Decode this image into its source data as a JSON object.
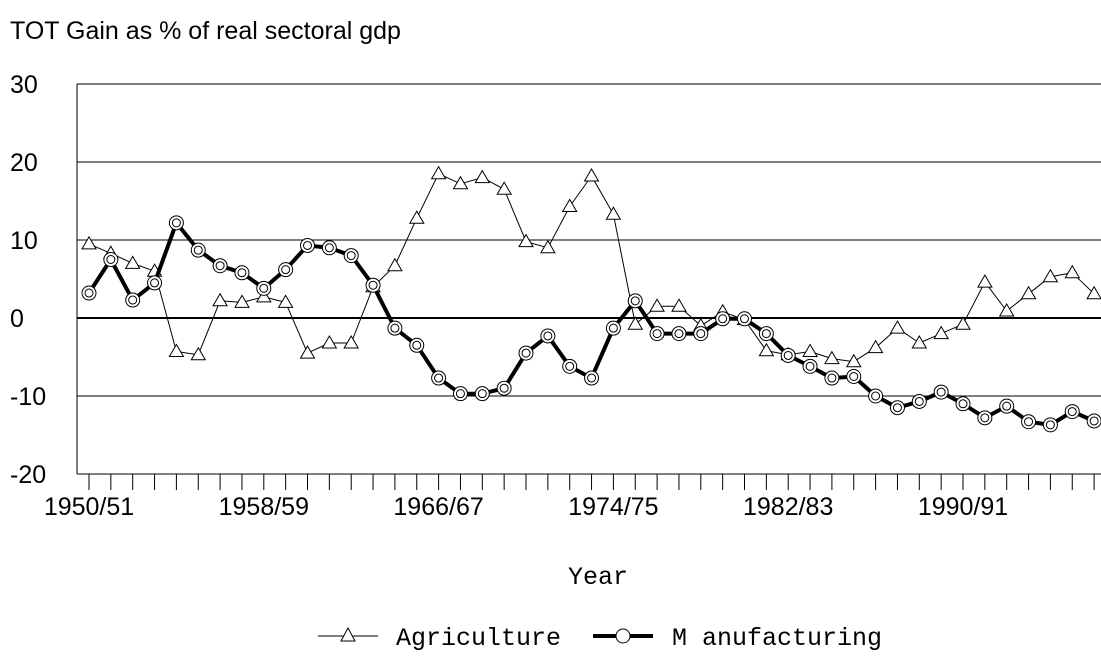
{
  "chart_data": {
    "type": "line",
    "title": "TOT Gain as % of real sectoral gdp",
    "xlabel": "Year",
    "ylabel": "",
    "ylim": [
      -20,
      30
    ],
    "yticks": [
      30,
      20,
      10,
      0,
      -10,
      -20
    ],
    "x": [
      "1950/51",
      "1951/52",
      "1952/53",
      "1953/54",
      "1954/55",
      "1955/56",
      "1956/57",
      "1957/58",
      "1958/59",
      "1959/60",
      "1960/61",
      "1961/62",
      "1962/63",
      "1963/64",
      "1964/65",
      "1965/66",
      "1966/67",
      "1967/68",
      "1968/69",
      "1969/70",
      "1970/71",
      "1971/72",
      "1972/73",
      "1973/74",
      "1974/75",
      "1975/76",
      "1976/77",
      "1977/78",
      "1978/79",
      "1979/80",
      "1980/81",
      "1981/82",
      "1982/83",
      "1983/84",
      "1984/85",
      "1985/86",
      "1986/87",
      "1987/88",
      "1988/89",
      "1989/90",
      "1990/91",
      "1991/92",
      "1992/93",
      "1993/94",
      "1994/95",
      "1995/96",
      "1996/97"
    ],
    "xtick_labels": [
      "1950/51",
      "1958/59",
      "1966/67",
      "1974/75",
      "1982/83",
      "1990/91"
    ],
    "grid": true,
    "legend_position": "bottom",
    "series": [
      {
        "name": "Agriculture",
        "color": "#000000",
        "marker": "triangle",
        "values": [
          9.5,
          8.3,
          7.0,
          6.0,
          -4.3,
          -4.7,
          2.2,
          2.0,
          2.7,
          2.0,
          -4.5,
          -3.2,
          -3.2,
          4.0,
          6.7,
          12.8,
          18.5,
          17.2,
          18.0,
          16.5,
          9.8,
          9.0,
          14.3,
          18.2,
          13.3,
          -0.8,
          1.5,
          1.5,
          -1.0,
          0.8,
          -0.2,
          -4.2,
          -4.7,
          -4.3,
          -5.2,
          -5.6,
          -3.8,
          -1.3,
          -3.2,
          -2.0,
          -0.8,
          4.6,
          0.9,
          3.1,
          5.3,
          5.8,
          3.1
        ]
      },
      {
        "name": "M anufacturing",
        "color": "#000000",
        "marker": "circle",
        "values": [
          3.2,
          7.5,
          2.3,
          4.5,
          12.2,
          8.7,
          6.7,
          5.8,
          3.8,
          6.2,
          9.3,
          9.0,
          8.0,
          4.2,
          -1.3,
          -3.5,
          -7.7,
          -9.7,
          -9.7,
          -9.0,
          -4.5,
          -2.3,
          -6.2,
          -7.7,
          -1.3,
          2.2,
          -2.0,
          -2.0,
          -2.0,
          -0.1,
          -0.1,
          -2.0,
          -4.8,
          -6.2,
          -7.7,
          -7.5,
          -10.0,
          -11.5,
          -10.7,
          -9.5,
          -11.0,
          -12.8,
          -11.3,
          -13.3,
          -13.7,
          -12.0,
          -13.2
        ]
      }
    ]
  }
}
